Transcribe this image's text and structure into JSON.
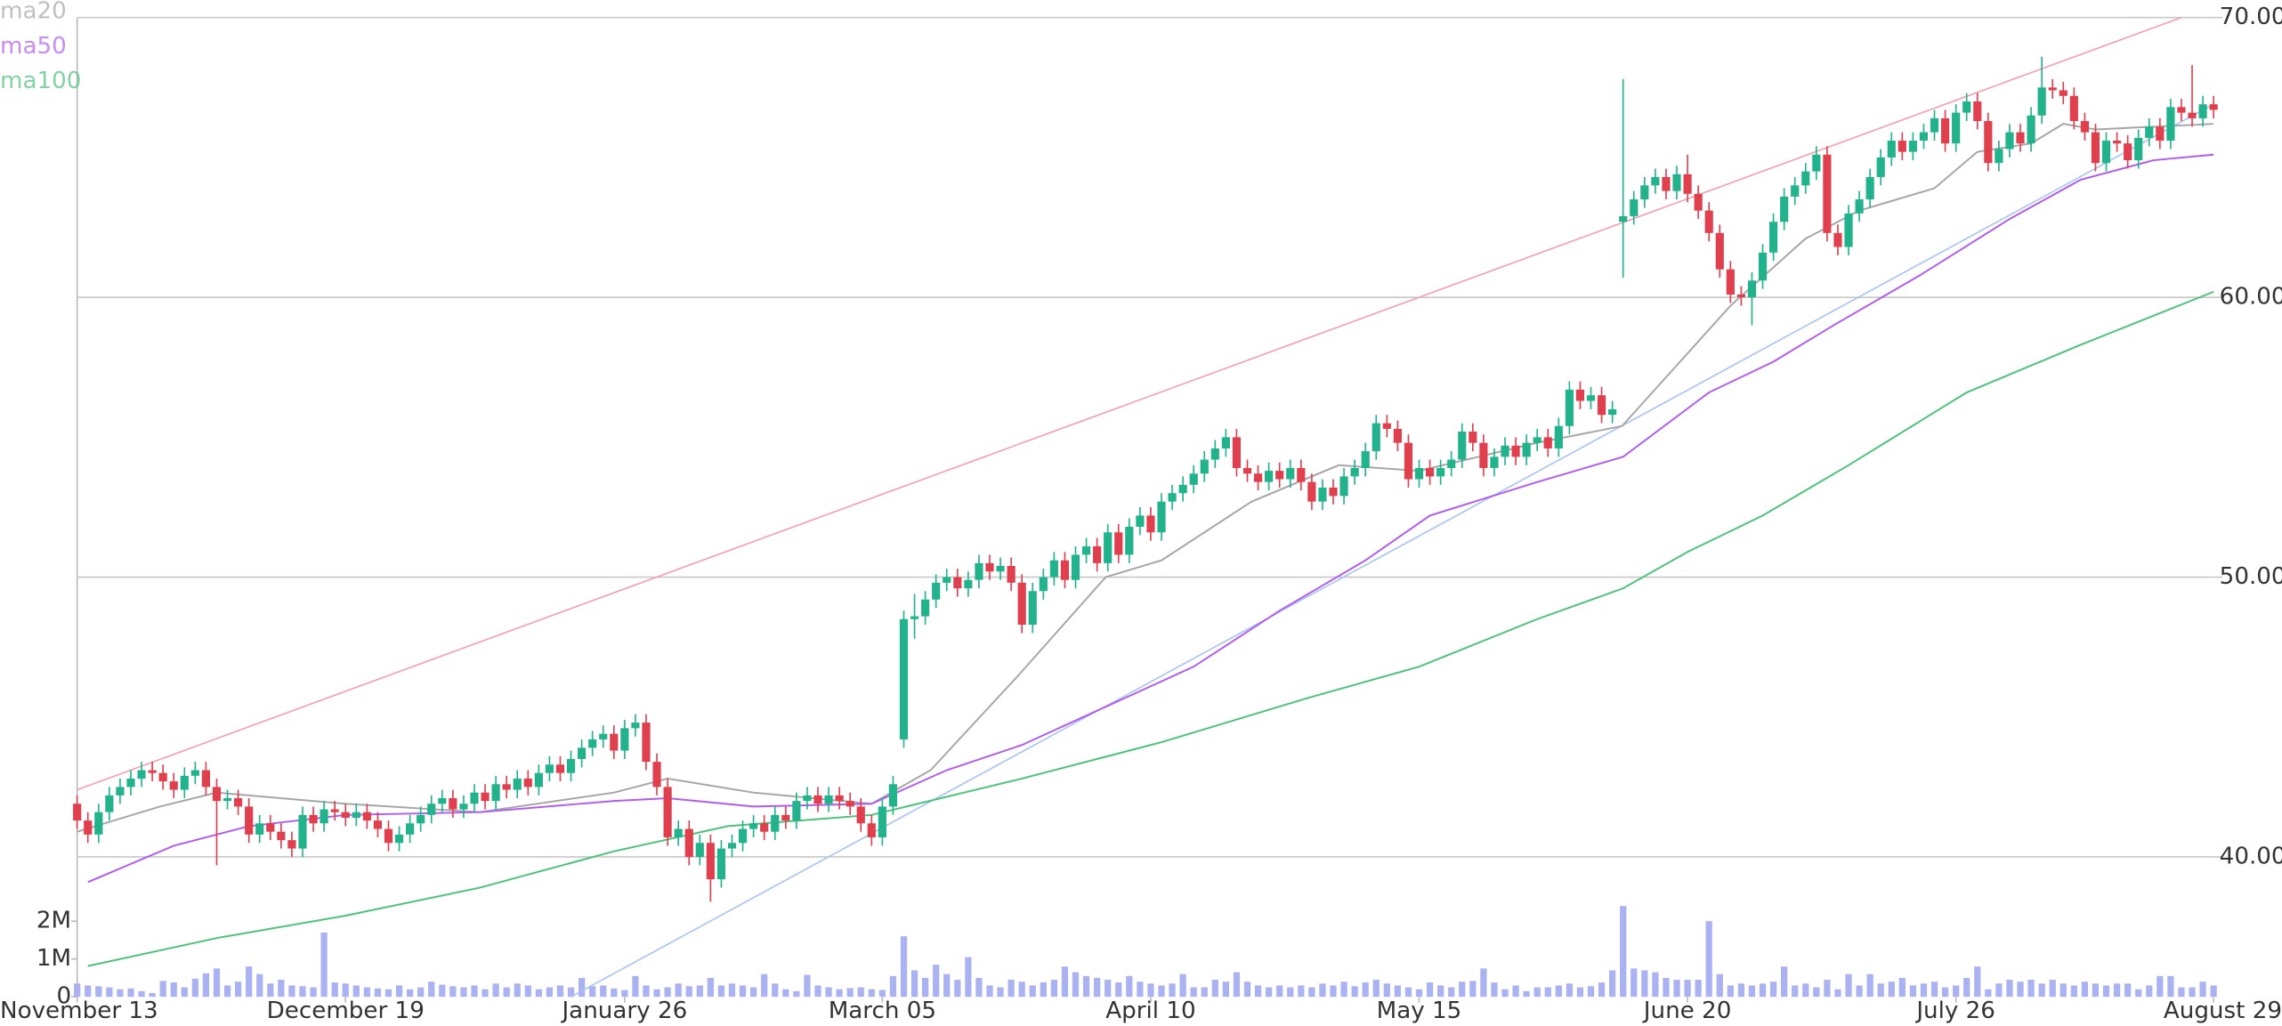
{
  "chart_data": {
    "type": "candlestick",
    "xlim": [
      0,
      199
    ],
    "xticks": [
      {
        "value": 0,
        "label": "November 13"
      },
      {
        "value": 25,
        "label": "December 19"
      },
      {
        "value": 51,
        "label": "January 26"
      },
      {
        "value": 75,
        "label": "March 05"
      },
      {
        "value": 100,
        "label": "April 10"
      },
      {
        "value": 125,
        "label": "May 15"
      },
      {
        "value": 150,
        "label": "June 20"
      },
      {
        "value": 175,
        "label": "July 26"
      },
      {
        "value": 199,
        "label": "August 29"
      }
    ],
    "ylim": [
      35,
      70
    ],
    "yticks": [
      {
        "value": 40,
        "label": "40.00"
      },
      {
        "value": 50,
        "label": "50.00"
      },
      {
        "value": 60,
        "label": "60.00"
      },
      {
        "value": 70,
        "label": "70.00"
      }
    ],
    "y2lim": [
      0,
      2500000
    ],
    "y2ticks": [
      0,
      {
        "value": 1000000,
        "label": "1M"
      },
      {
        "value": 2000000,
        "label": "2M"
      }
    ],
    "grid": true,
    "up_color": "#22b38c",
    "down_color": "#e0404e",
    "volume_color": "#aab2f2",
    "open": [
      41.9,
      41.3,
      40.8,
      41.6,
      42.2,
      42.5,
      42.8,
      43.1,
      43.0,
      42.7,
      42.4,
      42.9,
      43.1,
      42.5,
      42.0,
      42.1,
      41.8,
      40.8,
      41.2,
      40.9,
      40.6,
      40.3,
      41.5,
      41.2,
      41.7,
      41.6,
      41.4,
      41.6,
      41.3,
      41.0,
      40.5,
      40.8,
      41.2,
      41.5,
      41.9,
      42.1,
      41.7,
      41.9,
      42.3,
      42.0,
      42.6,
      42.4,
      42.8,
      42.5,
      43.0,
      43.3,
      43.0,
      43.5,
      43.9,
      44.2,
      44.4,
      43.8,
      44.6,
      44.8,
      43.4,
      42.5,
      40.7,
      41.0,
      40.0,
      40.5,
      39.2,
      40.3,
      40.5,
      41.0,
      41.2,
      40.9,
      41.5,
      41.3,
      42.0,
      42.2,
      41.9,
      42.2,
      42.0,
      41.8,
      41.2,
      40.7,
      41.8,
      44.2,
      48.5,
      48.6,
      49.2,
      49.8,
      50.0,
      49.6,
      49.9,
      50.5,
      50.2,
      50.4,
      49.8,
      48.3,
      49.5,
      50.0,
      50.6,
      49.9,
      50.8,
      51.1,
      50.5,
      51.6,
      50.8,
      51.8,
      52.2,
      51.6,
      52.7,
      53.0,
      53.3,
      53.7,
      54.2,
      54.6,
      55.0,
      53.9,
      53.7,
      53.4,
      53.8,
      53.5,
      53.9,
      53.4,
      52.7,
      53.2,
      52.9,
      53.6,
      53.9,
      54.5,
      55.5,
      55.3,
      54.8,
      53.5,
      53.9,
      53.6,
      53.9,
      54.2,
      55.2,
      54.8,
      53.9,
      54.3,
      54.7,
      54.3,
      54.8,
      55.0,
      54.6,
      55.4,
      56.7,
      56.3,
      56.5,
      55.8,
      62.7,
      62.9,
      63.5,
      64.0,
      64.3,
      63.8,
      64.4,
      63.7,
      63.1,
      62.3,
      61.0,
      60.1,
      60.0,
      60.6,
      61.6,
      62.7,
      63.6,
      64.0,
      64.5,
      65.1,
      62.3,
      61.8,
      63.0,
      63.5,
      64.3,
      65.0,
      65.6,
      65.2,
      65.6,
      65.9,
      66.4,
      65.5,
      66.6,
      67.0,
      66.3,
      64.8,
      65.3,
      65.9,
      65.5,
      66.5,
      67.5,
      67.4,
      67.2,
      66.3,
      65.9,
      64.8,
      65.6,
      65.5,
      64.9,
      65.7,
      66.1,
      65.6,
      66.8,
      66.6,
      66.4,
      66.9
    ],
    "high": [
      42.2,
      41.6,
      41.9,
      42.5,
      42.8,
      43.1,
      43.4,
      43.4,
      43.3,
      43.0,
      43.2,
      43.4,
      43.4,
      42.8,
      42.4,
      42.4,
      42.1,
      41.5,
      41.5,
      41.2,
      40.9,
      41.8,
      41.8,
      42.0,
      42.0,
      41.9,
      41.9,
      41.9,
      41.6,
      41.3,
      41.1,
      41.5,
      41.8,
      42.2,
      42.4,
      42.4,
      42.2,
      42.6,
      42.6,
      42.9,
      42.9,
      43.1,
      43.1,
      43.3,
      43.6,
      43.6,
      43.8,
      44.2,
      44.5,
      44.7,
      44.7,
      44.9,
      45.1,
      45.1,
      43.7,
      42.8,
      41.3,
      41.3,
      40.8,
      40.8,
      40.6,
      40.8,
      41.3,
      41.5,
      41.5,
      41.8,
      41.8,
      42.3,
      42.5,
      42.5,
      42.5,
      42.5,
      42.3,
      42.1,
      41.5,
      42.1,
      42.9,
      48.8,
      49.4,
      49.5,
      50.1,
      50.3,
      50.3,
      50.2,
      50.8,
      50.8,
      50.7,
      50.7,
      50.1,
      49.8,
      50.3,
      50.9,
      50.9,
      51.1,
      51.4,
      51.4,
      51.9,
      51.9,
      52.1,
      52.5,
      52.5,
      53.0,
      53.3,
      53.6,
      54.0,
      54.5,
      54.9,
      55.3,
      55.3,
      54.2,
      54.0,
      54.1,
      54.1,
      54.2,
      54.2,
      53.7,
      53.5,
      53.5,
      53.9,
      54.2,
      54.8,
      55.8,
      55.8,
      55.6,
      55.1,
      54.2,
      54.2,
      54.2,
      54.5,
      55.5,
      55.5,
      55.1,
      54.6,
      55.0,
      55.0,
      55.1,
      55.3,
      55.3,
      55.7,
      57.0,
      57.0,
      56.8,
      56.8,
      56.3,
      67.8,
      63.8,
      64.3,
      64.6,
      64.6,
      64.7,
      65.1,
      64.0,
      63.4,
      62.6,
      61.3,
      60.4,
      60.9,
      61.9,
      63.0,
      63.9,
      64.3,
      64.8,
      65.4,
      65.4,
      62.6,
      63.3,
      63.8,
      64.6,
      65.3,
      65.9,
      65.9,
      65.9,
      66.2,
      66.7,
      66.7,
      66.9,
      67.3,
      67.3,
      66.6,
      65.6,
      66.2,
      66.2,
      66.8,
      68.6,
      67.8,
      67.7,
      67.5,
      66.6,
      66.2,
      65.9,
      65.9,
      65.8,
      66.0,
      66.4,
      66.4,
      67.1,
      67.1,
      68.3,
      67.2,
      67.2
    ],
    "low": [
      41.0,
      40.5,
      40.5,
      41.3,
      41.9,
      42.2,
      42.5,
      42.7,
      42.4,
      42.1,
      42.1,
      42.6,
      42.2,
      39.7,
      41.7,
      41.5,
      40.5,
      40.5,
      40.6,
      40.3,
      40.0,
      40.0,
      40.9,
      40.9,
      41.3,
      41.1,
      41.1,
      41.0,
      40.7,
      40.2,
      40.2,
      40.5,
      40.9,
      41.2,
      41.6,
      41.4,
      41.4,
      41.6,
      41.7,
      41.7,
      42.1,
      42.1,
      42.2,
      42.2,
      42.7,
      42.7,
      42.7,
      43.2,
      43.6,
      43.9,
      43.5,
      43.5,
      44.3,
      43.1,
      42.2,
      40.4,
      40.4,
      39.7,
      39.7,
      38.4,
      38.9,
      40.0,
      40.2,
      40.7,
      40.6,
      40.6,
      41.0,
      41.0,
      41.7,
      41.6,
      41.6,
      41.7,
      41.5,
      40.9,
      40.4,
      40.4,
      41.5,
      43.9,
      47.8,
      48.3,
      48.9,
      49.5,
      49.3,
      49.3,
      49.6,
      49.9,
      49.9,
      49.5,
      48.0,
      48.0,
      49.2,
      49.7,
      49.6,
      49.6,
      50.5,
      50.2,
      50.2,
      50.5,
      50.5,
      51.5,
      51.3,
      51.3,
      52.4,
      52.7,
      53.0,
      53.4,
      53.9,
      54.3,
      53.6,
      53.4,
      53.1,
      53.1,
      53.2,
      53.2,
      53.1,
      52.4,
      52.4,
      52.6,
      52.6,
      53.3,
      53.6,
      54.2,
      55.0,
      54.5,
      53.2,
      53.2,
      53.3,
      53.3,
      53.6,
      53.9,
      54.5,
      53.6,
      53.6,
      54.0,
      54.0,
      54.0,
      54.5,
      54.3,
      54.3,
      55.1,
      56.0,
      56.0,
      55.5,
      55.5,
      60.7,
      62.6,
      63.2,
      63.7,
      63.5,
      63.5,
      63.4,
      62.8,
      62.0,
      60.7,
      59.8,
      59.7,
      59.0,
      60.3,
      61.3,
      62.4,
      63.3,
      63.7,
      64.2,
      62.0,
      61.5,
      61.5,
      62.7,
      63.2,
      64.0,
      64.7,
      64.9,
      64.9,
      65.3,
      65.6,
      65.2,
      65.2,
      66.3,
      66.0,
      64.5,
      64.5,
      65.0,
      65.2,
      65.2,
      66.2,
      67.1,
      66.9,
      66.0,
      65.6,
      64.5,
      64.5,
      65.2,
      64.6,
      64.6,
      65.4,
      65.3,
      65.3,
      66.3,
      66.1,
      66.1,
      66.4
    ],
    "close": [
      41.3,
      40.8,
      41.6,
      42.2,
      42.5,
      42.8,
      43.1,
      43.0,
      42.7,
      42.4,
      42.9,
      43.1,
      42.5,
      42.0,
      42.1,
      41.8,
      40.8,
      41.2,
      40.9,
      40.6,
      40.3,
      41.5,
      41.2,
      41.7,
      41.6,
      41.4,
      41.6,
      41.3,
      41.0,
      40.5,
      40.8,
      41.2,
      41.5,
      41.9,
      42.1,
      41.7,
      41.9,
      42.3,
      42.0,
      42.6,
      42.4,
      42.8,
      42.5,
      43.0,
      43.3,
      43.0,
      43.5,
      43.9,
      44.2,
      44.4,
      43.8,
      44.6,
      44.8,
      43.4,
      42.5,
      40.7,
      41.0,
      40.0,
      40.5,
      39.2,
      40.3,
      40.5,
      41.0,
      41.2,
      40.9,
      41.5,
      41.3,
      42.0,
      42.2,
      41.9,
      42.2,
      42.0,
      41.8,
      41.2,
      40.7,
      41.8,
      42.6,
      48.5,
      48.6,
      49.2,
      49.8,
      50.0,
      49.6,
      49.9,
      50.5,
      50.2,
      50.4,
      49.8,
      48.3,
      49.5,
      50.0,
      50.6,
      49.9,
      50.8,
      51.1,
      50.5,
      51.6,
      50.8,
      51.8,
      52.2,
      51.6,
      52.7,
      53.0,
      53.3,
      53.7,
      54.2,
      54.6,
      55.0,
      53.9,
      53.7,
      53.4,
      53.8,
      53.5,
      53.9,
      53.4,
      52.7,
      53.2,
      52.9,
      53.6,
      53.9,
      54.5,
      55.5,
      55.3,
      54.8,
      53.5,
      53.9,
      53.6,
      53.9,
      54.2,
      55.2,
      54.8,
      53.9,
      54.3,
      54.7,
      54.3,
      54.8,
      55.0,
      54.6,
      55.4,
      56.7,
      56.3,
      56.5,
      55.8,
      56.0,
      62.9,
      63.5,
      64.0,
      64.3,
      63.8,
      64.4,
      63.7,
      63.1,
      62.3,
      61.0,
      60.1,
      60.0,
      60.6,
      61.6,
      62.7,
      63.6,
      64.0,
      64.5,
      65.1,
      62.3,
      61.8,
      63.0,
      63.5,
      64.3,
      65.0,
      65.6,
      65.2,
      65.6,
      65.9,
      66.4,
      65.5,
      66.6,
      67.0,
      66.3,
      64.8,
      65.3,
      65.9,
      65.5,
      66.5,
      67.5,
      67.4,
      67.2,
      66.3,
      65.9,
      64.8,
      65.6,
      65.5,
      64.9,
      65.7,
      66.1,
      65.6,
      66.8,
      66.6,
      66.4,
      66.9,
      66.7
    ],
    "volume": [
      350000,
      300000,
      280000,
      250000,
      200000,
      220000,
      150000,
      100000,
      420000,
      380000,
      250000,
      480000,
      620000,
      750000,
      300000,
      400000,
      800000,
      600000,
      350000,
      450000,
      300000,
      280000,
      250000,
      1700000,
      380000,
      350000,
      300000,
      250000,
      220000,
      200000,
      300000,
      200000,
      250000,
      400000,
      320000,
      280000,
      250000,
      300000,
      200000,
      350000,
      250000,
      350000,
      300000,
      200000,
      250000,
      300000,
      250000,
      500000,
      280000,
      300000,
      220000,
      180000,
      550000,
      300000,
      200000,
      250000,
      350000,
      280000,
      300000,
      500000,
      300000,
      350000,
      300000,
      250000,
      600000,
      350000,
      200000,
      150000,
      580000,
      300000,
      250000,
      200000,
      230000,
      250000,
      200000,
      180000,
      550000,
      1600000,
      700000,
      500000,
      850000,
      600000,
      450000,
      1050000,
      500000,
      300000,
      250000,
      450000,
      400000,
      300000,
      380000,
      450000,
      800000,
      650000,
      550000,
      500000,
      450000,
      380000,
      550000,
      400000,
      350000,
      300000,
      350000,
      600000,
      250000,
      250000,
      450000,
      400000,
      650000,
      400000,
      300000,
      250000,
      300000,
      250000,
      300000,
      250000,
      350000,
      300000,
      400000,
      280000,
      380000,
      450000,
      350000,
      300000,
      250000,
      200000,
      380000,
      300000,
      250000,
      400000,
      420000,
      750000,
      380000,
      200000,
      300000,
      150000,
      250000,
      250000,
      300000,
      350000,
      250000,
      280000,
      380000,
      700000,
      2400000,
      750000,
      700000,
      650000,
      500000,
      450000,
      450000,
      450000,
      2000000,
      600000,
      300000,
      350000,
      300000,
      350000,
      400000,
      800000,
      300000,
      350000,
      250000,
      450000,
      200000,
      600000,
      300000,
      600000,
      350000,
      400000,
      500000,
      300000,
      350000,
      400000,
      250000,
      300000,
      500000,
      800000,
      200000,
      350000,
      450000,
      400000,
      450000,
      350000,
      450000,
      350000,
      300000,
      400000,
      350000,
      300000,
      350000,
      350000,
      200000,
      300000,
      550000,
      550000,
      250000,
      250000,
      400000,
      300000
    ],
    "lines": [
      {
        "name": "ma20",
        "color": "#a6a6a6",
        "x": [
          0,
          7.7,
          13,
          25,
          37.5,
          50,
          55,
          63,
          74,
          79.5,
          87.7,
          95.8,
          101,
          109.4,
          117.5,
          125,
          136,
          143.9,
          148.6,
          154,
          161,
          166,
          173,
          177,
          182,
          185,
          188,
          199
        ],
        "values": [
          40.9,
          41.8,
          42.3,
          41.9,
          41.6,
          42.3,
          42.8,
          42.3,
          41.9,
          43.1,
          46.5,
          50.0,
          50.6,
          52.7,
          54.0,
          53.8,
          54.8,
          55.4,
          57.4,
          59.7,
          62.1,
          63.1,
          63.9,
          65.2,
          65.5,
          66.2,
          66.0,
          66.2
        ]
      },
      {
        "name": "ma50",
        "color": "#b05cf0",
        "x": [
          1,
          9,
          16,
          25,
          37.5,
          50,
          55,
          63,
          74,
          81,
          88,
          96,
          104,
          112,
          120,
          126,
          136,
          144,
          152,
          158,
          163.6,
          171.7,
          180,
          186.6,
          193.4,
          199
        ],
        "values": [
          39.1,
          40.4,
          41.1,
          41.5,
          41.6,
          42.0,
          42.1,
          41.8,
          41.9,
          43.1,
          44.0,
          45.4,
          46.8,
          48.8,
          50.6,
          52.2,
          53.4,
          54.3,
          56.6,
          57.7,
          59.0,
          60.8,
          62.8,
          64.2,
          64.9,
          65.1
        ]
      },
      {
        "name": "ma100",
        "color": "#4cc27a",
        "x": [
          1,
          13,
          25,
          37.5,
          50,
          60.6,
          74,
          88,
          101,
          114.8,
          125,
          136,
          144,
          150,
          157,
          165,
          176,
          186.6,
          199
        ],
        "values": [
          36.1,
          37.1,
          37.9,
          38.9,
          40.2,
          41.1,
          41.5,
          42.8,
          44.1,
          45.7,
          46.8,
          48.5,
          49.6,
          50.9,
          52.2,
          54.0,
          56.6,
          58.3,
          60.2
        ]
      }
    ],
    "trendlines": [
      {
        "color": "#f4a0b0",
        "x": [
          0,
          196
        ],
        "values": [
          42.4,
          70
        ]
      },
      {
        "color": "#a8c4f0",
        "x": [
          46,
          199
        ],
        "values": [
          35,
          66.9
        ]
      }
    ]
  }
}
